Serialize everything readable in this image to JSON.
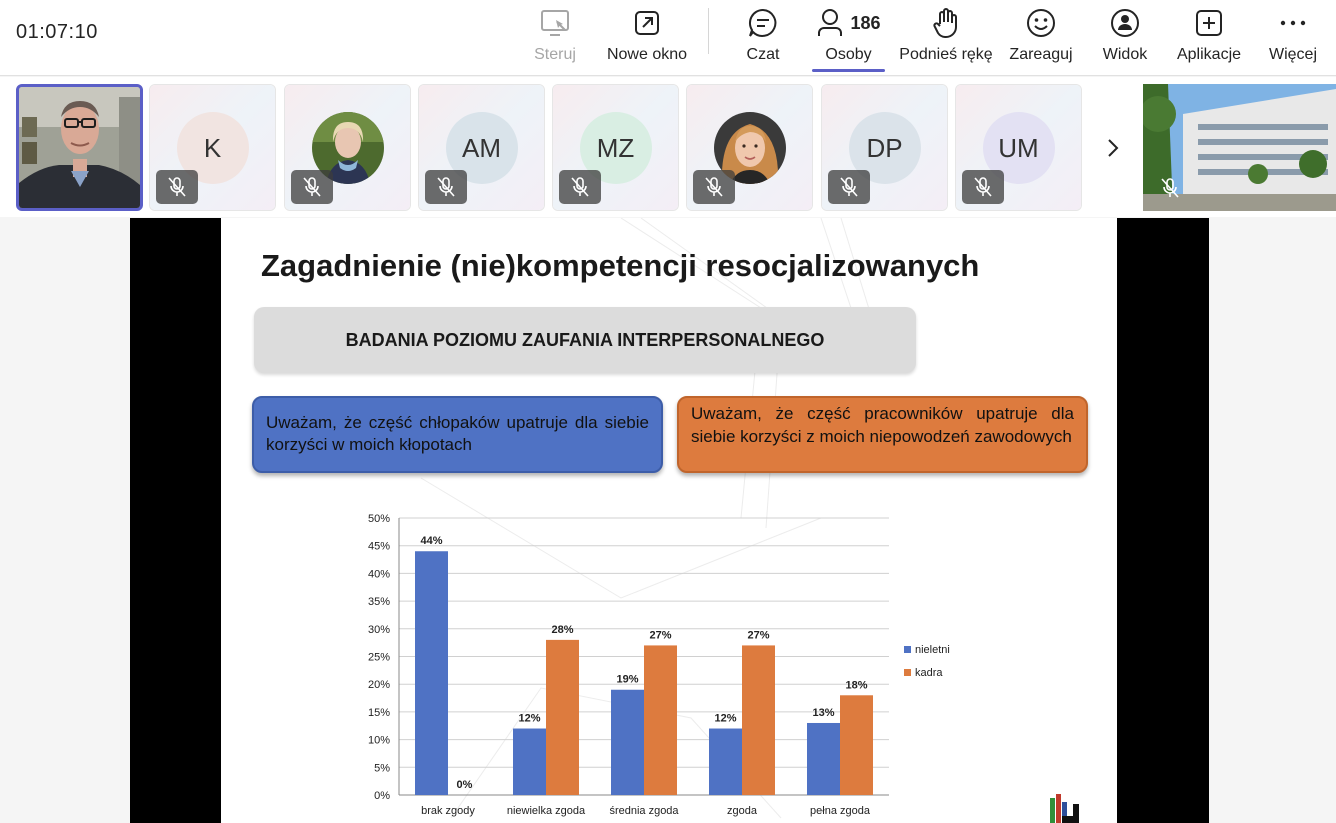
{
  "meeting": {
    "timer": "01:07:10"
  },
  "toolbar": {
    "steruj": "Steruj",
    "nowe_okno": "Nowe okno",
    "czat": "Czat",
    "osoby": "Osoby",
    "people_count": "186",
    "podnies_reke": "Podnieś rękę",
    "zareaguj": "Zareaguj",
    "widok": "Widok",
    "aplikacje": "Aplikacje",
    "wiecej": "Więcej"
  },
  "participants": [
    {
      "type": "video",
      "name": "speaker-video"
    },
    {
      "type": "initials",
      "initials": "K",
      "color": "#f1e4e1"
    },
    {
      "type": "photo",
      "name": "participant-photo-1"
    },
    {
      "type": "initials",
      "initials": "AM",
      "color": "#d9e3ea"
    },
    {
      "type": "initials",
      "initials": "MZ",
      "color": "#d9eee3"
    },
    {
      "type": "photo",
      "name": "participant-photo-2"
    },
    {
      "type": "initials",
      "initials": "DP",
      "color": "#dbe3ea"
    },
    {
      "type": "initials",
      "initials": "UM",
      "color": "#e3e1f3"
    },
    {
      "type": "video",
      "name": "building-video"
    }
  ],
  "slide": {
    "title": "Zagadnienie (nie)kompetencji resocjalizowanych",
    "subtitle": "BADANIA POZIOMU ZAUFANIA INTERPERSONALNEGO",
    "statement_blue": "Uważam, że część chłopaków upatruje dla siebie korzyści w moich kłopotach",
    "statement_orange": "Uważam, że część pracowników upatruje dla siebie korzyści z moich niepowodzeń zawodowych"
  },
  "chart_data": {
    "type": "bar",
    "categories": [
      "brak zgody",
      "niewielka zgoda",
      "średnia zgoda",
      "zgoda",
      "pełna zgoda"
    ],
    "series": [
      {
        "name": "nieletni",
        "color": "#4f72c4",
        "values": [
          44,
          12,
          19,
          12,
          13
        ],
        "labels": [
          "44%",
          "12%",
          "19%",
          "12%",
          "13%"
        ]
      },
      {
        "name": "kadra",
        "color": "#dd7b3e",
        "values": [
          0,
          28,
          27,
          27,
          18
        ],
        "labels": [
          "0%",
          "28%",
          "27%",
          "27%",
          "18%"
        ]
      }
    ],
    "yticks": [
      "0%",
      "5%",
      "10%",
      "15%",
      "20%",
      "25%",
      "30%",
      "35%",
      "40%",
      "45%",
      "50%"
    ],
    "ylim": [
      0,
      50
    ],
    "grid": true,
    "legend": "right"
  }
}
